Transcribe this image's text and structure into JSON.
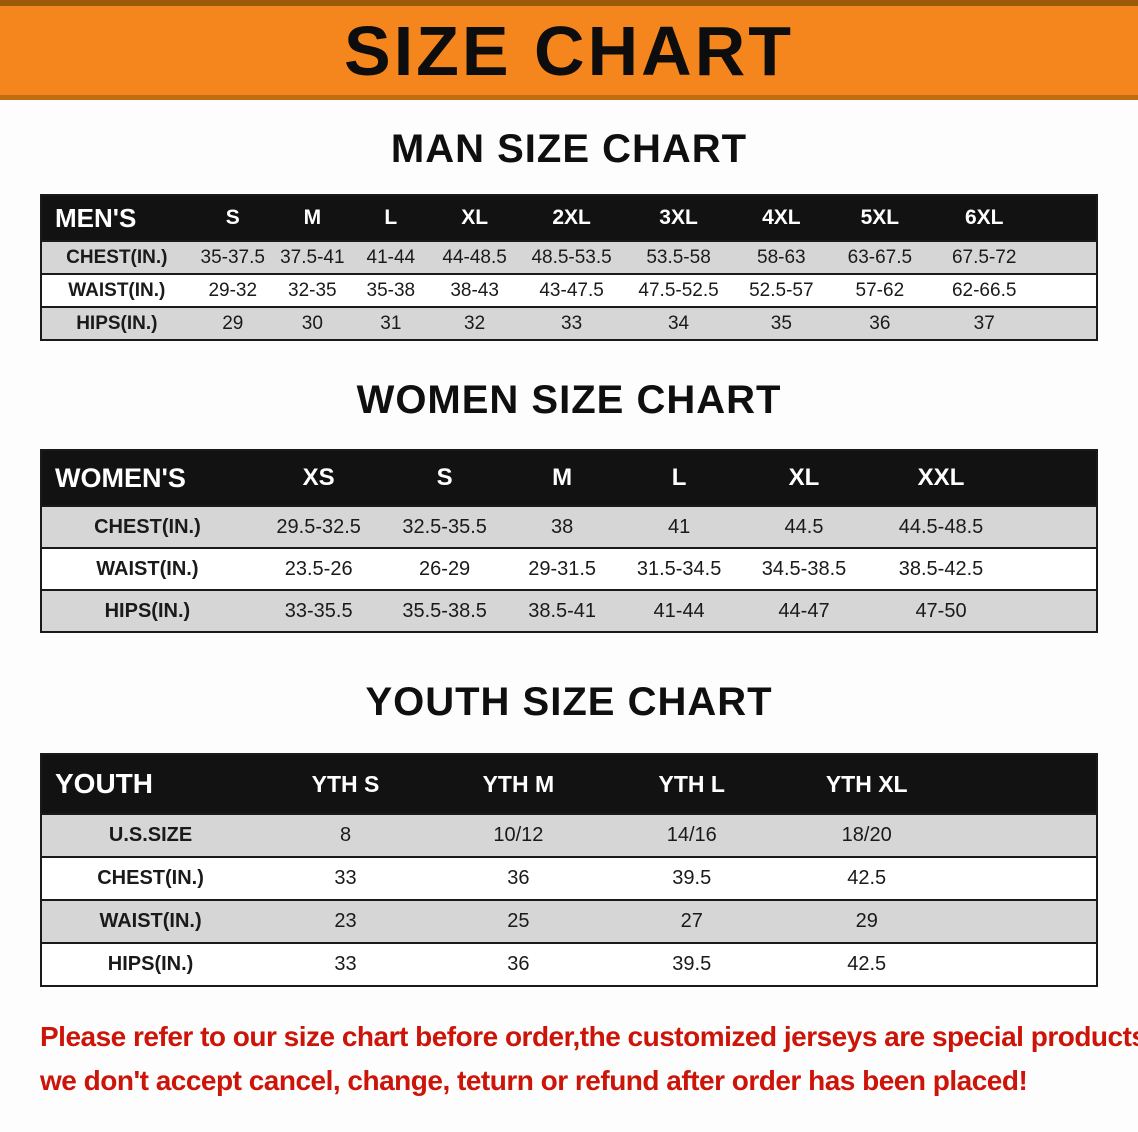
{
  "banner": {
    "title": "SIZE CHART"
  },
  "sections": {
    "men": {
      "heading": "MAN SIZE CHART",
      "table": {
        "header": [
          "MEN'S",
          "S",
          "M",
          "L",
          "XL",
          "2XL",
          "3XL",
          "4XL",
          "5XL",
          "6XL"
        ],
        "rows": [
          [
            "CHEST(IN.)",
            "35-37.5",
            "37.5-41",
            "41-44",
            "44-48.5",
            "48.5-53.5",
            "53.5-58",
            "58-63",
            "63-67.5",
            "67.5-72"
          ],
          [
            "WAIST(IN.)",
            "29-32",
            "32-35",
            "35-38",
            "38-43",
            "43-47.5",
            "47.5-52.5",
            "52.5-57",
            "57-62",
            "62-66.5"
          ],
          [
            "HIPS(IN.)",
            "29",
            "30",
            "31",
            "32",
            "33",
            "34",
            "35",
            "36",
            "37"
          ]
        ]
      }
    },
    "women": {
      "heading": "WOMEN SIZE CHART",
      "table": {
        "header": [
          "WOMEN'S",
          "XS",
          "S",
          "M",
          "L",
          "XL",
          "XXL"
        ],
        "rows": [
          [
            "CHEST(IN.)",
            "29.5-32.5",
            "32.5-35.5",
            "38",
            "41",
            "44.5",
            "44.5-48.5"
          ],
          [
            "WAIST(IN.)",
            "23.5-26",
            "26-29",
            "29-31.5",
            "31.5-34.5",
            "34.5-38.5",
            "38.5-42.5"
          ],
          [
            "HIPS(IN.)",
            "33-35.5",
            "35.5-38.5",
            "38.5-41",
            "41-44",
            "44-47",
            "47-50"
          ]
        ]
      }
    },
    "youth": {
      "heading": "YOUTH SIZE CHART",
      "table": {
        "header": [
          "YOUTH",
          "YTH S",
          "YTH M",
          "YTH L",
          "YTH XL"
        ],
        "rows": [
          [
            "U.S.SIZE",
            "8",
            "10/12",
            "14/16",
            "18/20"
          ],
          [
            "CHEST(IN.)",
            "33",
            "36",
            "39.5",
            "42.5"
          ],
          [
            "WAIST(IN.)",
            "23",
            "25",
            "27",
            "29"
          ],
          [
            "HIPS(IN.)",
            "33",
            "36",
            "39.5",
            "42.5"
          ]
        ]
      }
    }
  },
  "disclaimer": {
    "line1": "Please refer to our size chart before order,the customized jerseys are special products,",
    "line2": "we don't accept cancel, change, teturn or refund after order has been placed!"
  },
  "colors": {
    "banner_bg": "#f5861d",
    "banner_edge_top": "#9a5a08",
    "banner_edge_bottom": "#c06f10",
    "table_header_bg": "#121212",
    "row_stripe": "#d6d6d6",
    "border": "#1a1a1a",
    "heading_color": "#0f0f0f",
    "disclaimer_red": "#cc1408"
  }
}
